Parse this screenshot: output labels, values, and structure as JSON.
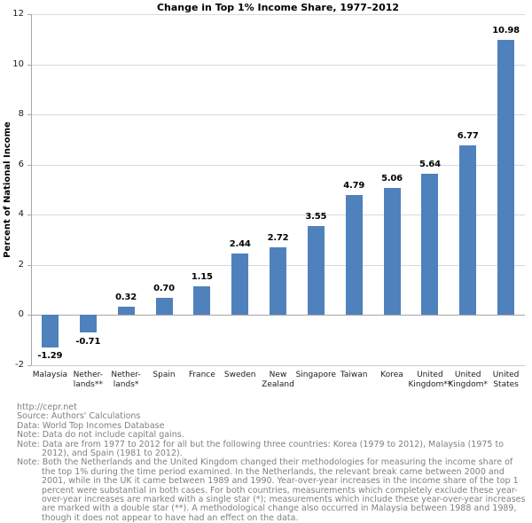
{
  "chart_data": {
    "type": "bar",
    "title": "Change in Top 1% Income Share, 1977–2012",
    "xlabel": "",
    "ylabel": "Percent of National Income",
    "ylim": [
      -2,
      12
    ],
    "yticks": [
      -2,
      0,
      2,
      4,
      6,
      8,
      10,
      12
    ],
    "grid": true,
    "legend": "none",
    "bar_color": "#4F81BD",
    "categories": [
      "Malaysia",
      "Netherlands**",
      "Netherlands*",
      "Spain",
      "France",
      "Sweden",
      "New Zealand",
      "Singapore",
      "Taiwan",
      "Korea",
      "United Kingdom**",
      "United Kingdom*",
      "United States"
    ],
    "category_display": [
      "Malaysia",
      "Nether-\nlands**",
      "Nether-\nlands*",
      "Spain",
      "France",
      "Sweden",
      "New\nZealand",
      "Singapore",
      "Taiwan",
      "Korea",
      "United\nKingdom**",
      "United\nKingdom*",
      "United\nStates"
    ],
    "values": [
      -1.29,
      -0.71,
      0.32,
      0.7,
      1.15,
      2.44,
      2.72,
      3.55,
      4.79,
      5.06,
      5.64,
      6.77,
      10.98
    ],
    "value_labels": [
      "-1.29",
      "-0.71",
      "0.32",
      "0.70",
      "1.15",
      "2.44",
      "2.72",
      "3.55",
      "4.79",
      "5.06",
      "5.64",
      "6.77",
      "10.98"
    ]
  },
  "footer": {
    "lines": [
      "http://cepr.net",
      "Source: Authors' Calculations",
      "Data: World Top Incomes Database",
      "Note: Data do not include capital gains.",
      "Note: Data are from 1977 to 2012 for all but the following three countries: Korea (1979 to 2012), Malaysia (1975 to 2012), and Spain (1981 to 2012).",
      "Note: Both the Netherlands and the United Kingdom changed their methodologies for measuring the income share of the top 1% during the time period examined. In the Netherlands, the relevant break came between 2000 and 2001, while in the UK it came between 1989 and 1990. Year-over-year increases in the income share of the top 1 percent were substantial in both cases. For both countries, measurements which completely exclude these year-over-year increases are marked with a single star (*); measurements which include these year-over-year increases are marked with a double star (**). A methodological change also occurred in Malaysia between 1988 and 1989, though it does not appear to have had an effect on the data."
    ]
  },
  "colors": {
    "bar": "#4F81BD",
    "gridline": "#D9D9D9",
    "axis": "#A6A6A6",
    "title_text": "#000000",
    "footer_text": "#808080",
    "background": "#FFFFFF"
  }
}
